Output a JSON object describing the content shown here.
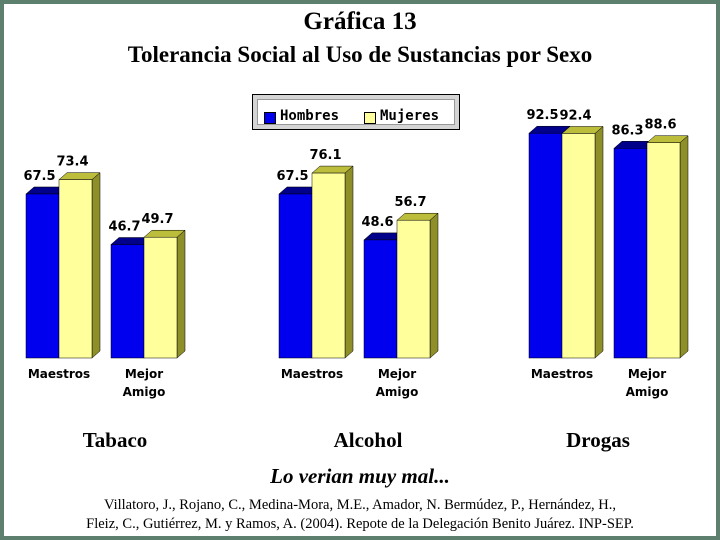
{
  "title_line1": "Gráfica 13",
  "title_line2": "Tolerancia Social al Uso de Sustancias por Sexo",
  "note": "Lo verian muy mal...",
  "citation_line1": "Villatoro, J., Rojano, C., Medina-Mora, M.E., Amador, N. Bermúdez, P., Hernández, H.,",
  "citation_line2": "Fleiz, C., Gutiérrez, M. y Ramos, A. (2004). Repote de la Delegación Benito Juárez. INP-SEP.",
  "colors": {
    "hombres": "#0000ee",
    "hombres_top": "#00008b",
    "hombres_side": "#000070",
    "mujeres": "#ffff9c",
    "mujeres_top": "#bdbd3c",
    "mujeres_side": "#8f8f2a",
    "background": "#5d7f6e"
  },
  "chart_data": {
    "type": "bar",
    "title": "Tolerancia Social al Uso de Sustancias por Sexo",
    "legend": [
      "Hombres",
      "Mujeres"
    ],
    "legend_position": "top-center",
    "ylim": [
      0,
      100
    ],
    "grid": false,
    "groups": [
      {
        "name": "Tabaco",
        "categories": [
          "Maestros",
          "Mejor Amigo"
        ],
        "series": [
          {
            "name": "Hombres",
            "values": [
              67.5,
              46.7
            ]
          },
          {
            "name": "Mujeres",
            "values": [
              73.4,
              49.7
            ]
          }
        ]
      },
      {
        "name": "Alcohol",
        "categories": [
          "Maestros",
          "Mejor Amigo"
        ],
        "series": [
          {
            "name": "Hombres",
            "values": [
              67.5,
              48.6
            ]
          },
          {
            "name": "Mujeres",
            "values": [
              76.1,
              56.7
            ]
          }
        ]
      },
      {
        "name": "Drogas",
        "categories": [
          "Maestros",
          "Mejor Amigo"
        ],
        "series": [
          {
            "name": "Hombres",
            "values": [
              92.5,
              86.3
            ]
          },
          {
            "name": "Mujeres",
            "values": [
              92.4,
              88.6
            ]
          }
        ]
      }
    ]
  }
}
